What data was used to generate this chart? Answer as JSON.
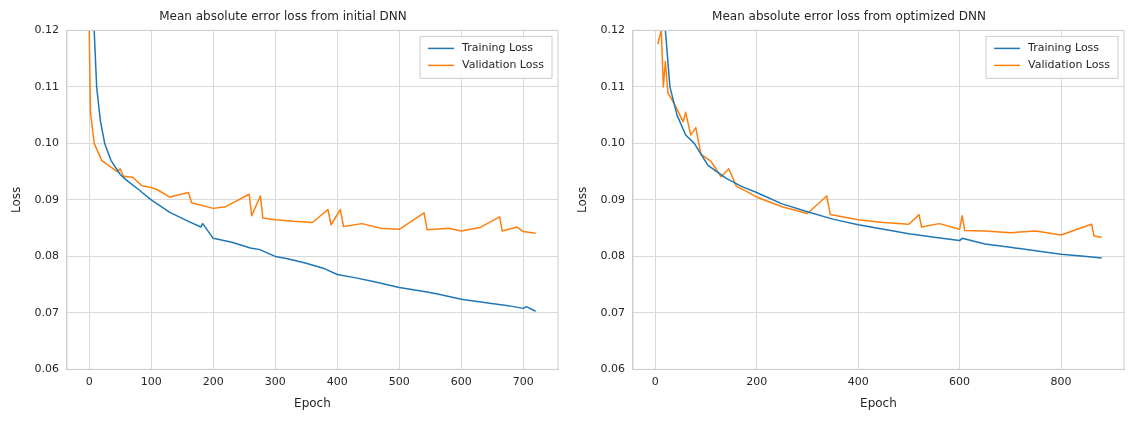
{
  "chart_data": [
    {
      "type": "line",
      "title": "Mean absolute error loss from initial DNN",
      "xlabel": "Epoch",
      "ylabel": "Loss",
      "xlim": [
        -36,
        756
      ],
      "ylim": [
        0.06,
        0.12
      ],
      "xticks": [
        0,
        100,
        200,
        300,
        400,
        500,
        600,
        700
      ],
      "yticks": [
        {
          "value": 0.06,
          "label": "0.06"
        },
        {
          "value": 0.07,
          "label": "0.07"
        },
        {
          "value": 0.08,
          "label": "0.08"
        },
        {
          "value": 0.09,
          "label": "0.09"
        },
        {
          "value": 0.1,
          "label": "0.10"
        },
        {
          "value": 0.11,
          "label": "0.11"
        },
        {
          "value": 0.12,
          "label": "0.12"
        }
      ],
      "grid": true,
      "legend": "top right",
      "line_style": "solid",
      "marker": "none",
      "series": [
        {
          "name": "Training Loss",
          "color": "#1f77b4",
          "x": [
            8,
            12,
            18,
            25,
            35,
            50,
            60,
            80,
            100,
            130,
            160,
            180,
            183,
            200,
            230,
            260,
            275,
            300,
            320,
            350,
            380,
            400,
            430,
            460,
            500,
            540,
            560,
            600,
            640,
            680,
            700,
            705,
            720
          ],
          "values": [
            0.12,
            0.11,
            0.104,
            0.1,
            0.097,
            0.0945,
            0.0935,
            0.0918,
            0.09,
            0.0878,
            0.0862,
            0.0852,
            0.0858,
            0.0832,
            0.0825,
            0.0815,
            0.0812,
            0.08,
            0.0796,
            0.0788,
            0.0778,
            0.0768,
            0.0762,
            0.0755,
            0.0745,
            0.0738,
            0.0734,
            0.0724,
            0.0718,
            0.0712,
            0.0708,
            0.0711,
            0.0703
          ]
        },
        {
          "name": "Validation Loss",
          "color": "#ff7f0e",
          "x": [
            0,
            2,
            8,
            20,
            45,
            50,
            55,
            70,
            85,
            100,
            110,
            130,
            160,
            165,
            200,
            220,
            258,
            262,
            276,
            280,
            300,
            330,
            360,
            385,
            390,
            405,
            410,
            440,
            470,
            500,
            540,
            545,
            580,
            600,
            630,
            662,
            666,
            690,
            700,
            720
          ],
          "values": [
            0.12,
            0.1055,
            0.1,
            0.097,
            0.095,
            0.0955,
            0.0942,
            0.094,
            0.0925,
            0.0922,
            0.0918,
            0.0905,
            0.0913,
            0.0895,
            0.0885,
            0.0888,
            0.091,
            0.0872,
            0.0907,
            0.0868,
            0.0865,
            0.0862,
            0.086,
            0.0883,
            0.0856,
            0.0883,
            0.0853,
            0.0858,
            0.085,
            0.0848,
            0.0877,
            0.0847,
            0.085,
            0.0845,
            0.0851,
            0.087,
            0.0845,
            0.0852,
            0.0844,
            0.0841
          ]
        }
      ]
    },
    {
      "type": "line",
      "title": "Mean absolute error loss from optimized DNN",
      "xlabel": "Epoch",
      "ylabel": "Loss",
      "xlim": [
        -44,
        924
      ],
      "ylim": [
        0.06,
        0.12
      ],
      "xticks": [
        0,
        200,
        400,
        600,
        800
      ],
      "yticks": [
        {
          "value": 0.06,
          "label": "0.06"
        },
        {
          "value": 0.07,
          "label": "0.07"
        },
        {
          "value": 0.08,
          "label": "0.08"
        },
        {
          "value": 0.09,
          "label": "0.09"
        },
        {
          "value": 0.1,
          "label": "0.10"
        },
        {
          "value": 0.11,
          "label": "0.11"
        },
        {
          "value": 0.12,
          "label": "0.12"
        }
      ],
      "grid": true,
      "legend": "top right",
      "line_style": "solid",
      "marker": "none",
      "series": [
        {
          "name": "Training Loss",
          "color": "#1f77b4",
          "x": [
            20,
            29,
            43,
            60,
            77,
            104,
            140,
            170,
            200,
            250,
            300,
            350,
            400,
            450,
            500,
            550,
            600,
            605,
            650,
            700,
            750,
            800,
            850,
            880
          ],
          "values": [
            0.12,
            0.11,
            0.105,
            0.1015,
            0.1,
            0.0961,
            0.0938,
            0.0924,
            0.0913,
            0.0893,
            0.0879,
            0.0866,
            0.0856,
            0.0848,
            0.084,
            0.0834,
            0.0828,
            0.0832,
            0.0822,
            0.0816,
            0.081,
            0.0804,
            0.08,
            0.0797
          ]
        },
        {
          "name": "Validation Loss",
          "color": "#ff7f0e",
          "x": [
            5,
            12,
            16,
            20,
            25,
            40,
            55,
            60,
            70,
            80,
            90,
            110,
            130,
            145,
            160,
            180,
            200,
            250,
            300,
            338,
            345,
            400,
            450,
            500,
            520,
            525,
            560,
            600,
            605,
            610,
            650,
            700,
            750,
            800,
            860,
            865,
            880
          ],
          "values": [
            0.1176,
            0.12,
            0.11,
            0.1145,
            0.109,
            0.1066,
            0.1038,
            0.1055,
            0.1015,
            0.1028,
            0.0981,
            0.0968,
            0.0941,
            0.0955,
            0.0924,
            0.0915,
            0.0905,
            0.0888,
            0.0876,
            0.0907,
            0.0874,
            0.0865,
            0.086,
            0.0857,
            0.0874,
            0.0852,
            0.0858,
            0.0848,
            0.0872,
            0.0846,
            0.0845,
            0.0842,
            0.0845,
            0.0838,
            0.0857,
            0.0836,
            0.0834
          ]
        }
      ]
    }
  ]
}
